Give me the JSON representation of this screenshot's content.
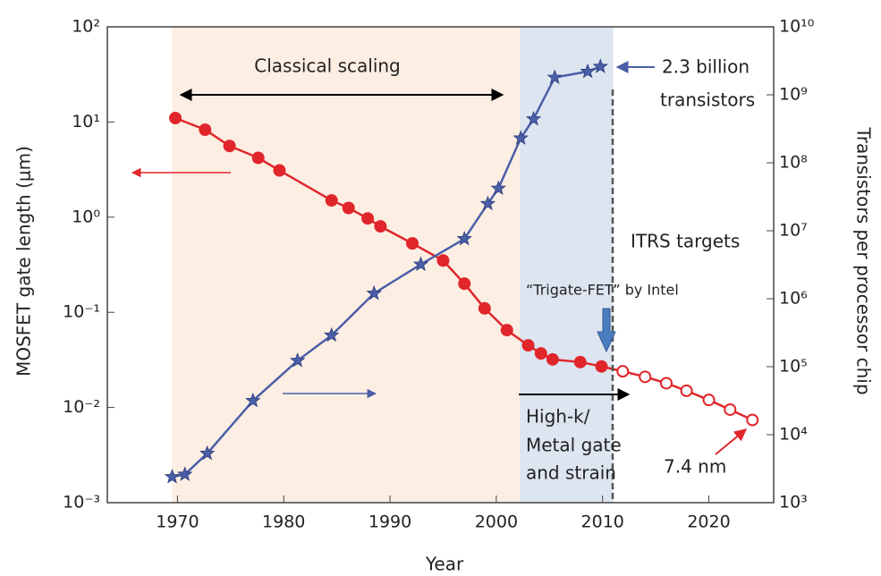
{
  "chart_data": {
    "type": "line",
    "xlabel": "Year",
    "ylabel": "MOSFET gate length (μm)",
    "y2label": "Transistors per processor chip",
    "xlim": [
      1963.4,
      2026.1
    ],
    "xticks": [
      1970,
      1980,
      1990,
      2000,
      2010,
      2020
    ],
    "ylim": [
      0.001,
      100
    ],
    "yticks": [
      {
        "value": 100,
        "label": "10²"
      },
      {
        "value": 10,
        "label": "10¹"
      },
      {
        "value": 1,
        "label": "10⁰"
      },
      {
        "value": 0.1,
        "label": "10⁻¹"
      },
      {
        "value": 0.01,
        "label": "10⁻²"
      },
      {
        "value": 0.001,
        "label": "10⁻³"
      }
    ],
    "y2lim": [
      1000,
      10000000000
    ],
    "y2ticks": [
      {
        "value": 10000000000,
        "label": "10¹⁰"
      },
      {
        "value": 1000000000,
        "label": "10⁹"
      },
      {
        "value": 100000000,
        "label": "10⁸"
      },
      {
        "value": 10000000,
        "label": "10⁷"
      },
      {
        "value": 1000000,
        "label": "10⁶"
      },
      {
        "value": 100000,
        "label": "10⁵"
      },
      {
        "value": 10000,
        "label": "10⁴"
      },
      {
        "value": 1000,
        "label": "10³"
      }
    ],
    "log_scale": true,
    "shaded_spans": [
      {
        "from": 1969.5,
        "to": 2002.2,
        "color": "#fdeee3"
      },
      {
        "from": 2002.2,
        "to": 2011,
        "color": "#dde5f1"
      }
    ],
    "series": [
      {
        "color": "#e0262b",
        "marker": "circle",
        "axis": "y",
        "x": [
          1969.8,
          1972.6,
          1974.9,
          1977.6,
          1979.6,
          1984.5,
          1986.1,
          1987.9,
          1989.1,
          1992.1,
          1995,
          1997,
          1998.9,
          2001,
          2003,
          2004.2,
          2005.3,
          2007.9,
          2009.9
        ],
        "values": [
          11,
          8.3,
          5.6,
          4.2,
          3.1,
          1.5,
          1.25,
          0.97,
          0.8,
          0.53,
          0.35,
          0.2,
          0.11,
          0.065,
          0.045,
          0.037,
          0.032,
          0.03,
          0.027
        ]
      },
      {
        "color": "#e0262b",
        "marker": "open-circle",
        "axis": "y",
        "x": [
          2011.9,
          2014,
          2016,
          2017.9,
          2020,
          2022,
          2024.1
        ],
        "values": [
          0.024,
          0.021,
          0.018,
          0.015,
          0.012,
          0.0095,
          0.0074
        ]
      },
      {
        "color": "#4a5fa8",
        "marker": "star",
        "axis": "y2",
        "x": [
          1969.5,
          1970.7,
          1972.8,
          1977.1,
          1981.3,
          1984.5,
          1988.5,
          1992.9,
          1997,
          1999.2,
          2000.2,
          2002.3,
          2003.5,
          2005.5,
          2008.6,
          2009.8
        ],
        "values": [
          2400,
          2600,
          5300,
          31600,
          123000,
          290000,
          1200000,
          3200000,
          7600000,
          25000000,
          42000000,
          230000000,
          440000000,
          1800000000,
          2200000000,
          2600000000
        ]
      }
    ],
    "annotations": {
      "classical": "Classical scaling",
      "billion": [
        "2.3 billion",
        "transistors"
      ],
      "itrs": "ITRS targets",
      "trigate": "“Trigate-FET” by Intel",
      "highk": [
        "High-k/",
        "Metal gate",
        "and strain"
      ],
      "end": "7.4 nm"
    }
  }
}
